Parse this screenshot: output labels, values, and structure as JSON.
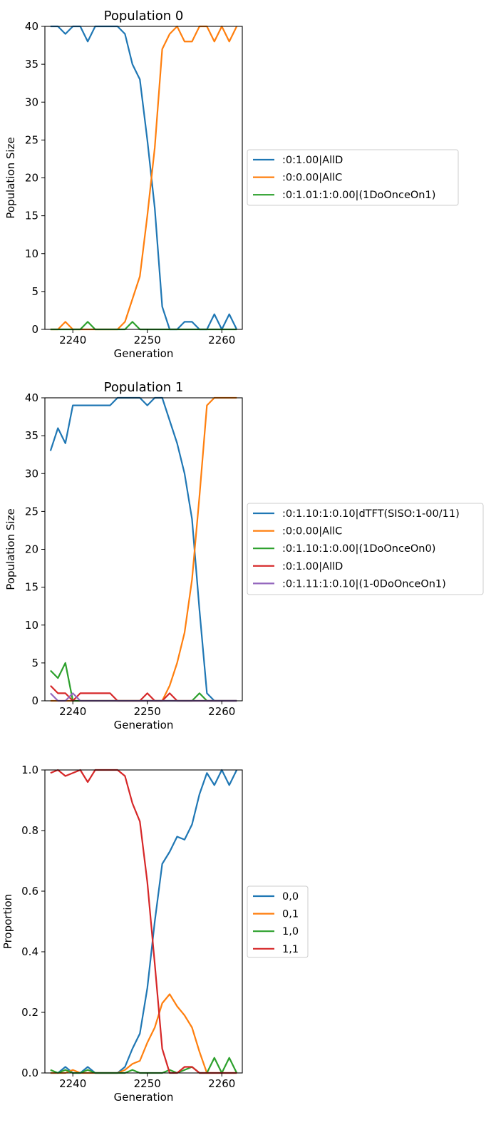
{
  "colors": [
    "#1f77b4",
    "#ff7f0e",
    "#2ca02c",
    "#d62728",
    "#9467bd"
  ],
  "chart_data": [
    {
      "type": "line",
      "title": "Population 0",
      "xlabel": "Generation",
      "ylabel": "Population Size",
      "xlim": [
        2236.25,
        2262.75
      ],
      "ylim": [
        0,
        40
      ],
      "xticks": [
        2240,
        2250,
        2260
      ],
      "yticks": [
        0,
        5,
        10,
        15,
        20,
        25,
        30,
        35,
        40
      ],
      "tick_labels_x": [
        "2240",
        "2250",
        "2260"
      ],
      "tick_labels_y": [
        "0",
        "5",
        "10",
        "15",
        "20",
        "25",
        "30",
        "35",
        "40"
      ],
      "legend_position": "center-left outside right",
      "grid": false,
      "x": [
        2237,
        2238,
        2239,
        2240,
        2241,
        2242,
        2243,
        2244,
        2245,
        2246,
        2247,
        2248,
        2249,
        2250,
        2251,
        2252,
        2253,
        2254,
        2255,
        2256,
        2257,
        2258,
        2259,
        2260,
        2261,
        2262
      ],
      "series": [
        {
          "name": ":0:1.00|AllD",
          "values": [
            40,
            40,
            39,
            40,
            40,
            38,
            40,
            40,
            40,
            40,
            39,
            35,
            33,
            25,
            16,
            3,
            0,
            0,
            1,
            1,
            0,
            0,
            2,
            0,
            2,
            0
          ]
        },
        {
          "name": ":0:0.00|AllC",
          "values": [
            0,
            0,
            1,
            0,
            0,
            0,
            0,
            0,
            0,
            0,
            1,
            4,
            7,
            15,
            24,
            37,
            39,
            40,
            38,
            38,
            40,
            40,
            38,
            40,
            38,
            40
          ]
        },
        {
          "name": ":0:1.01:1:0.00|(1DoOnceOn1)",
          "values": [
            0,
            0,
            0,
            0,
            0,
            1,
            0,
            0,
            0,
            0,
            0,
            1,
            0,
            0,
            0,
            0,
            0,
            0,
            0,
            0,
            0,
            0,
            0,
            0,
            0,
            0
          ]
        }
      ]
    },
    {
      "type": "line",
      "title": "Population 1",
      "xlabel": "Generation",
      "ylabel": "Population Size",
      "xlim": [
        2236.25,
        2262.75
      ],
      "ylim": [
        0,
        40
      ],
      "xticks": [
        2240,
        2250,
        2260
      ],
      "yticks": [
        0,
        5,
        10,
        15,
        20,
        25,
        30,
        35,
        40
      ],
      "tick_labels_x": [
        "2240",
        "2250",
        "2260"
      ],
      "tick_labels_y": [
        "0",
        "5",
        "10",
        "15",
        "20",
        "25",
        "30",
        "35",
        "40"
      ],
      "legend_position": "center-left outside right",
      "grid": false,
      "x": [
        2237,
        2238,
        2239,
        2240,
        2241,
        2242,
        2243,
        2244,
        2245,
        2246,
        2247,
        2248,
        2249,
        2250,
        2251,
        2252,
        2253,
        2254,
        2255,
        2256,
        2257,
        2258,
        2259,
        2260,
        2261,
        2262
      ],
      "series": [
        {
          "name": ":0:1.10:1:0.10|dTFT(SISO:1-00/11)",
          "values": [
            33,
            36,
            34,
            39,
            39,
            39,
            39,
            39,
            39,
            40,
            40,
            40,
            40,
            39,
            40,
            40,
            37,
            34,
            30,
            24,
            12,
            1,
            0,
            0,
            0,
            0
          ]
        },
        {
          "name": ":0:0.00|AllC",
          "values": [
            0,
            0,
            0,
            0,
            0,
            0,
            0,
            0,
            0,
            0,
            0,
            0,
            0,
            0,
            0,
            0,
            2,
            5,
            9,
            16,
            27,
            39,
            40,
            40,
            40,
            40
          ]
        },
        {
          "name": ":0:1.10:1:0.00|(1DoOnceOn0)",
          "values": [
            4,
            3,
            5,
            0,
            0,
            0,
            0,
            0,
            0,
            0,
            0,
            0,
            0,
            0,
            0,
            0,
            0,
            0,
            0,
            0,
            1,
            0,
            0,
            0,
            0,
            0
          ]
        },
        {
          "name": ":0:1.00|AllD",
          "values": [
            2,
            1,
            1,
            0,
            1,
            1,
            1,
            1,
            1,
            0,
            0,
            0,
            0,
            1,
            0,
            0,
            1,
            0,
            0,
            0,
            0,
            0,
            0,
            0,
            0,
            0
          ]
        },
        {
          "name": ":0:1.11:1:0.10|(1-0DoOnceOn1)",
          "values": [
            1,
            0,
            0,
            1,
            0,
            0,
            0,
            0,
            0,
            0,
            0,
            0,
            0,
            0,
            0,
            0,
            0,
            0,
            0,
            0,
            0,
            0,
            0,
            0,
            0,
            0
          ]
        }
      ]
    },
    {
      "type": "line",
      "title": "",
      "xlabel": "Generation",
      "ylabel": "Proportion",
      "xlim": [
        2236.25,
        2262.75
      ],
      "ylim": [
        0,
        1
      ],
      "xticks": [
        2240,
        2250,
        2260
      ],
      "yticks": [
        0,
        0.2,
        0.4,
        0.6,
        0.8,
        1.0
      ],
      "tick_labels_x": [
        "2240",
        "2250",
        "2260"
      ],
      "tick_labels_y": [
        "0.0",
        "0.2",
        "0.4",
        "0.6",
        "0.8",
        "1.0"
      ],
      "legend_position": "center-left outside right",
      "grid": false,
      "x": [
        2237,
        2238,
        2239,
        2240,
        2241,
        2242,
        2243,
        2244,
        2245,
        2246,
        2247,
        2248,
        2249,
        2250,
        2251,
        2252,
        2253,
        2254,
        2255,
        2256,
        2257,
        2258,
        2259,
        2260,
        2261,
        2262
      ],
      "series": [
        {
          "name": "0,0",
          "values": [
            0,
            0,
            0.02,
            0,
            0,
            0.02,
            0,
            0,
            0,
            0,
            0.02,
            0.08,
            0.13,
            0.28,
            0.5,
            0.69,
            0.73,
            0.78,
            0.77,
            0.82,
            0.92,
            0.99,
            0.95,
            1.0,
            0.95,
            1.0
          ]
        },
        {
          "name": "0,1",
          "values": [
            0,
            0,
            0,
            0.01,
            0,
            0,
            0,
            0,
            0,
            0,
            0.01,
            0.03,
            0.04,
            0.1,
            0.15,
            0.23,
            0.26,
            0.22,
            0.19,
            0.15,
            0.07,
            0,
            0,
            0,
            0,
            0
          ]
        },
        {
          "name": "1,0",
          "values": [
            0.01,
            0,
            0.01,
            0,
            0,
            0.01,
            0,
            0,
            0,
            0,
            0,
            0.01,
            0,
            0,
            0,
            0,
            0.01,
            0,
            0.01,
            0.02,
            0,
            0,
            0.05,
            0,
            0.05,
            0
          ]
        },
        {
          "name": "1,1",
          "values": [
            0.99,
            1.0,
            0.98,
            0.99,
            1.0,
            0.96,
            1.0,
            1.0,
            1.0,
            1.0,
            0.98,
            0.89,
            0.83,
            0.63,
            0.36,
            0.08,
            0,
            0,
            0.02,
            0.02,
            0,
            0,
            0,
            0,
            0,
            0
          ]
        }
      ]
    }
  ]
}
